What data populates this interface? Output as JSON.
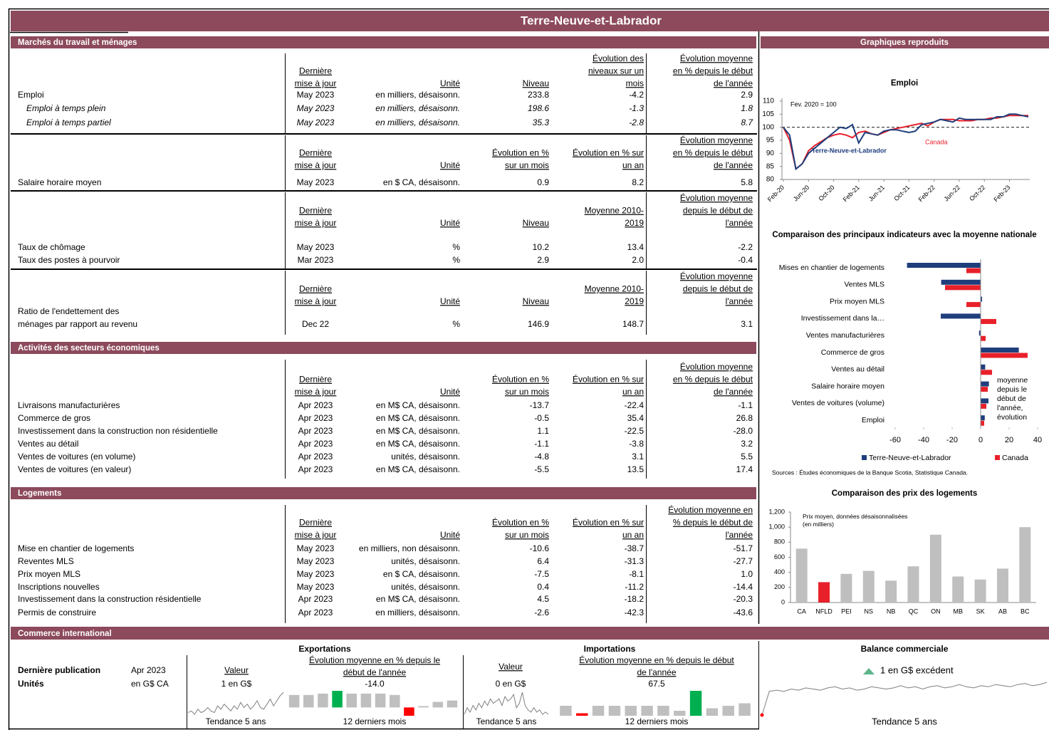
{
  "title": "Terre-Neuve-et-Labrador",
  "charts_title": "Graphiques reproduits",
  "sections": [
    {
      "title": "Marchés du travail et ménages",
      "tables": [
        {
          "headers": [
            [
              "Dernière",
              "mise à jour"
            ],
            [
              "Unité"
            ],
            [
              "Niveau"
            ],
            [
              "Évolution des",
              "niveaux sur un",
              "mois"
            ],
            [
              "Évolution moyenne",
              "en % depuis le début",
              "de l'année"
            ]
          ],
          "rows": [
            {
              "label": "Emploi",
              "cells": [
                "May 2023",
                "en milliers, désaisonn.",
                "233.8",
                "-4.2",
                "2.9"
              ]
            },
            {
              "label": "Emploi à temps plein",
              "italic": true,
              "cells": [
                "May 2023",
                "en milliers, désaisonn.",
                "198.6",
                "-1.3",
                "1.8"
              ]
            },
            {
              "label": "Emploi à temps partiel",
              "italic": true,
              "cells": [
                "May 2023",
                "en milliers, désaisonn.",
                "35.3",
                "-2.8",
                "8.7"
              ]
            }
          ]
        },
        {
          "headers": [
            [
              "Dernière",
              "mise à jour"
            ],
            [
              "Unité"
            ],
            [
              "Évolution en %",
              "sur un mois"
            ],
            [
              "Évolution en % sur",
              "un an"
            ],
            [
              "Évolution moyenne",
              "en % depuis le début",
              "de l'année"
            ]
          ],
          "rows": [
            {
              "label": "Salaire horaire moyen",
              "cells": [
                "May 2023",
                "en $ CA, désaisonn.",
                "0.9",
                "8.2",
                "5.8"
              ]
            }
          ]
        },
        {
          "headers": [
            [
              "Dernière",
              "mise à jour"
            ],
            [
              "Unité"
            ],
            [
              "Niveau"
            ],
            [
              "Moyenne 2010-",
              "2019"
            ],
            [
              "Évolution moyenne",
              "depuis le début de",
              "l'année"
            ]
          ],
          "rows": [
            {
              "label": "Taux de chômage",
              "cells": [
                "May 2023",
                "%",
                "10.2",
                "13.4",
                "-2.2"
              ]
            },
            {
              "label": "Taux des postes à pourvoir",
              "cells": [
                "Mar 2023",
                "%",
                "2.9",
                "2.0",
                "-0.4"
              ]
            }
          ]
        },
        {
          "headers": [
            [
              "Dernière",
              "mise à jour"
            ],
            [
              "Unité"
            ],
            [
              "Niveau"
            ],
            [
              "Moyenne 2010-",
              "2019"
            ],
            [
              "Évolution moyenne",
              "depuis le début de",
              "l'année"
            ]
          ],
          "rows": [
            {
              "label": [
                "Ratio de l'endettement des",
                "ménages par rapport au revenu"
              ],
              "cells": [
                "Dec 22",
                "%",
                "146.9",
                "148.7",
                "3.1"
              ]
            }
          ]
        }
      ]
    },
    {
      "title": "Activités des secteurs économiques",
      "tables": [
        {
          "headers": [
            [
              "Dernière",
              "mise à jour"
            ],
            [
              "Unité"
            ],
            [
              "Évolution en %",
              "sur un mois"
            ],
            [
              "Évolution en % sur",
              "un an"
            ],
            [
              "Évolution moyenne",
              "en % depuis le début",
              "de l'année"
            ]
          ],
          "rows": [
            {
              "label": "Livraisons manufacturières",
              "cells": [
                "Apr 2023",
                "en M$ CA, désaisonn.",
                "-13.7",
                "-22.4",
                "-1.1"
              ]
            },
            {
              "label": "Commerce de gros",
              "cells": [
                "Apr 2023",
                "en M$ CA, désaisonn.",
                "-0.5",
                "35.4",
                "26.8"
              ]
            },
            {
              "label": "Investissement dans la construction non résidentielle",
              "cells": [
                "Apr 2023",
                "en M$ CA, désaisonn.",
                "1.1",
                "-22.5",
                "-28.0"
              ]
            },
            {
              "label": "Ventes au détail",
              "cells": [
                "Apr 2023",
                "en M$ CA, désaisonn.",
                "-1.1",
                "-3.8",
                "3.2"
              ]
            },
            {
              "label": "Ventes de voitures (en volume)",
              "cells": [
                "Apr 2023",
                "unités, désaisonn.",
                "-4.8",
                "3.1",
                "5.5"
              ]
            },
            {
              "label": "Ventes de voitures (en valeur)",
              "cells": [
                "Apr 2023",
                "en M$ CA, désaisonn.",
                "-5.5",
                "13.5",
                "17.4"
              ]
            }
          ]
        }
      ]
    },
    {
      "title": "Logements",
      "tables": [
        {
          "headers": [
            [
              "Dernière",
              "mise à jour"
            ],
            [
              "Unité"
            ],
            [
              "Évolution en %",
              "sur un mois"
            ],
            [
              "Évolution en % sur",
              "un an"
            ],
            [
              "Évolution moyenne en",
              "% depuis le début de",
              "l'année"
            ]
          ],
          "rows": [
            {
              "label": "Mise en chantier de logements",
              "cells": [
                "May 2023",
                "en milliers, non désaisonn.",
                "-10.6",
                "-38.7",
                "-51.7"
              ]
            },
            {
              "label": "Reventes MLS",
              "cells": [
                "May 2023",
                "unités, désaisonn.",
                "6.4",
                "-31.3",
                "-27.7"
              ]
            },
            {
              "label": "Prix moyen MLS",
              "cells": [
                "May 2023",
                "en $ CA, désaisonn.",
                "-7.5",
                "-8.1",
                "1.0"
              ]
            },
            {
              "label": "Inscriptions nouvelles",
              "cells": [
                "May 2023",
                "unités, désaisonn.",
                "0.4",
                "-11.2",
                "-14.4"
              ]
            },
            {
              "label": "Investissement dans la construction résidentielle",
              "cells": [
                "Apr 2023",
                "en M$ CA, désaisonn.",
                "4.5",
                "-18.2",
                "-20.3"
              ]
            },
            {
              "label": "Permis de construire",
              "cells": [
                "Apr 2023",
                "en milliers, désaisonn.",
                "-2.6",
                "-42.3",
                "-43.6"
              ]
            }
          ]
        }
      ]
    }
  ],
  "chart_data": [
    {
      "type": "line",
      "title": "Emploi",
      "annotation": "Fev. 2020 = 100",
      "x": [
        "Feb-20",
        null,
        null,
        null,
        "Jun-20",
        null,
        null,
        null,
        "Oct-20",
        null,
        null,
        null,
        "Feb-21",
        null,
        null,
        null,
        "Jun-21",
        null,
        null,
        null,
        "Oct-21",
        null,
        null,
        null,
        "Feb-22",
        null,
        null,
        null,
        "Jun-22",
        null,
        null,
        null,
        "Oct-22",
        null,
        null,
        null,
        "Feb-23",
        null,
        null,
        null
      ],
      "series": [
        {
          "name": "Terre-Neuve-et-Labrador",
          "color": "#1f3e7c",
          "values": [
            100,
            97,
            84,
            86,
            90,
            92,
            94,
            96,
            98,
            100,
            99.5,
            101,
            94,
            98,
            97.5,
            97,
            98.5,
            99,
            99,
            98.5,
            98,
            98.5,
            101,
            101.5,
            102,
            103,
            102.5,
            102,
            103.5,
            103,
            103,
            103,
            103,
            103,
            104,
            104,
            105,
            105,
            104.5,
            104
          ]
        },
        {
          "name": "Canada",
          "color": "#e8202a",
          "values": [
            100,
            95,
            84,
            86,
            91,
            93,
            94.5,
            96,
            97,
            97.5,
            97,
            96,
            98,
            98.5,
            97.5,
            97,
            98,
            99,
            99.5,
            100,
            100.5,
            101,
            101.5,
            100.5,
            102,
            103,
            103,
            103,
            102.5,
            102.5,
            102.5,
            103,
            103,
            103.5,
            103.5,
            104,
            104.5,
            104.5,
            104.5,
            104.5
          ]
        }
      ],
      "ylim": [
        80,
        110
      ],
      "yticks": [
        80,
        85,
        90,
        95,
        100,
        105,
        110
      ],
      "reference": 100
    },
    {
      "type": "hbar",
      "title": "Comparaison des principaux indicateurs avec la moyenne nationale",
      "categories": [
        "Mises en chantier de logements",
        "Ventes MLS",
        "Prix moyen MLS",
        "Investissement dans la…",
        "Ventes manufacturières",
        "Commerce de gros",
        "Ventes au détail",
        "Salaire horaire moyen",
        "Ventes de voitures (volume)",
        "Emploi"
      ],
      "series": [
        {
          "name": "Terre-Neuve-et-Labrador",
          "color": "#1f3e7c",
          "values": [
            -51.7,
            -27.7,
            1.0,
            -28.0,
            -1.1,
            26.8,
            3.2,
            5.8,
            5.5,
            2.9
          ]
        },
        {
          "name": "Canada",
          "color": "#e8202a",
          "values": [
            -10,
            -25,
            -10,
            11,
            3.5,
            33,
            8,
            5,
            4,
            2.5
          ]
        }
      ],
      "xlim": [
        -60,
        40
      ],
      "xticks": [
        -60,
        -40,
        -20,
        0,
        20,
        40
      ],
      "legend": "bottom",
      "annotation": "moyenne depuis le début de l'année, évolution",
      "source": "Sources : Études économiques de la Banque Scotia, Statistique Canada."
    },
    {
      "type": "bar",
      "title": "Comparaison des prix des logements",
      "annotation": "Prix moyen, données désaisonnalisées (en milliers)",
      "categories": [
        "CA",
        "NFLD",
        "PEI",
        "NS",
        "NB",
        "QC",
        "ON",
        "MB",
        "SK",
        "AB",
        "BC"
      ],
      "values": [
        715,
        270,
        380,
        420,
        290,
        480,
        900,
        345,
        305,
        450,
        1000
      ],
      "colors": [
        "#bfbfbf",
        "#e8202a",
        "#bfbfbf",
        "#bfbfbf",
        "#bfbfbf",
        "#bfbfbf",
        "#bfbfbf",
        "#bfbfbf",
        "#bfbfbf",
        "#bfbfbf",
        "#bfbfbf"
      ],
      "ylim": [
        0,
        1200
      ],
      "yticks": [
        0,
        200,
        400,
        600,
        800,
        {
          "value": 1000,
          "label": "1,000"
        },
        {
          "value": 1200,
          "label": "1,200"
        }
      ]
    }
  ],
  "trade": {
    "title": "Commerce international",
    "last_label": "Dernière publication",
    "last_value": "Apr 2023",
    "units_label": "Unités",
    "units_value": "en G$ CA",
    "color": "#bfbfbf",
    "max_color": "#00b050",
    "min_color": "#ff0000",
    "line_color": "#7f7f7f",
    "exports": {
      "title": "Exportations",
      "value_header": "Valeur",
      "value": "1 en G$",
      "change_header": [
        "Évolution moyenne en % depuis le",
        "début de l'année"
      ],
      "change": "-14.0",
      "trend_label": "Tendance 5 ans",
      "months_label": "12 derniers mois",
      "trend": [
        0.8,
        0.9,
        0.7,
        1.0,
        0.8,
        0.9,
        1.1,
        0.9,
        0.8,
        1.2,
        1.0,
        1.3,
        1.1,
        0.9,
        1.2,
        1.0,
        1.4,
        1.1,
        1.3,
        1.0,
        1.2,
        1.5,
        1.1,
        1.0,
        1.3,
        1.6,
        1.2,
        1.5,
        1.8,
        2.0
      ],
      "months": [
        0.9,
        0.9,
        1.0,
        1.2,
        1.0,
        1.0,
        1.0,
        0.9,
        -0.6,
        0.1,
        0.4,
        0.5
      ]
    },
    "imports": {
      "title": "Importations",
      "value_header": "Valeur",
      "value": "0 en G$",
      "change_header": [
        "Évolution moyenne en % depuis le début",
        "de l'année"
      ],
      "change": "67.5",
      "trend_label": "Tendance 5 ans",
      "months_label": "12 derniers mois",
      "trend": [
        0.3,
        0.6,
        0.4,
        0.7,
        0.5,
        0.8,
        0.6,
        0.9,
        0.7,
        1.0,
        0.8,
        0.9,
        1.0,
        0.7,
        1.1,
        0.9,
        1.0,
        1.2,
        0.6,
        0.8,
        1.3,
        0.7,
        0.5,
        0.4,
        0.6,
        0.4,
        0.5,
        0.3,
        0.4,
        0.3
      ],
      "months": [
        0.4,
        0.1,
        0.4,
        0.4,
        0.4,
        0.4,
        0.4,
        0.2,
        1.0,
        0.3,
        0.4,
        0.5
      ]
    },
    "balance": {
      "title": "Balance commerciale",
      "value": "1 en G$ excédent",
      "trend_label": "Tendance 5 ans",
      "trend": [
        -1.5,
        0.6,
        0.7,
        0.6,
        0.8,
        0.7,
        0.9,
        0.8,
        0.7,
        0.9,
        1.0,
        0.8,
        0.9,
        0.7,
        0.8,
        1.0,
        0.9,
        0.8,
        0.9,
        1.1,
        0.9,
        1.0,
        0.8,
        1.0,
        1.1,
        0.9,
        1.0,
        1.2,
        1.0,
        0.9,
        1.1,
        1.0,
        1.2,
        1.1,
        1.0,
        1.2,
        1.3,
        1.1,
        1.2,
        1.4
      ]
    }
  }
}
